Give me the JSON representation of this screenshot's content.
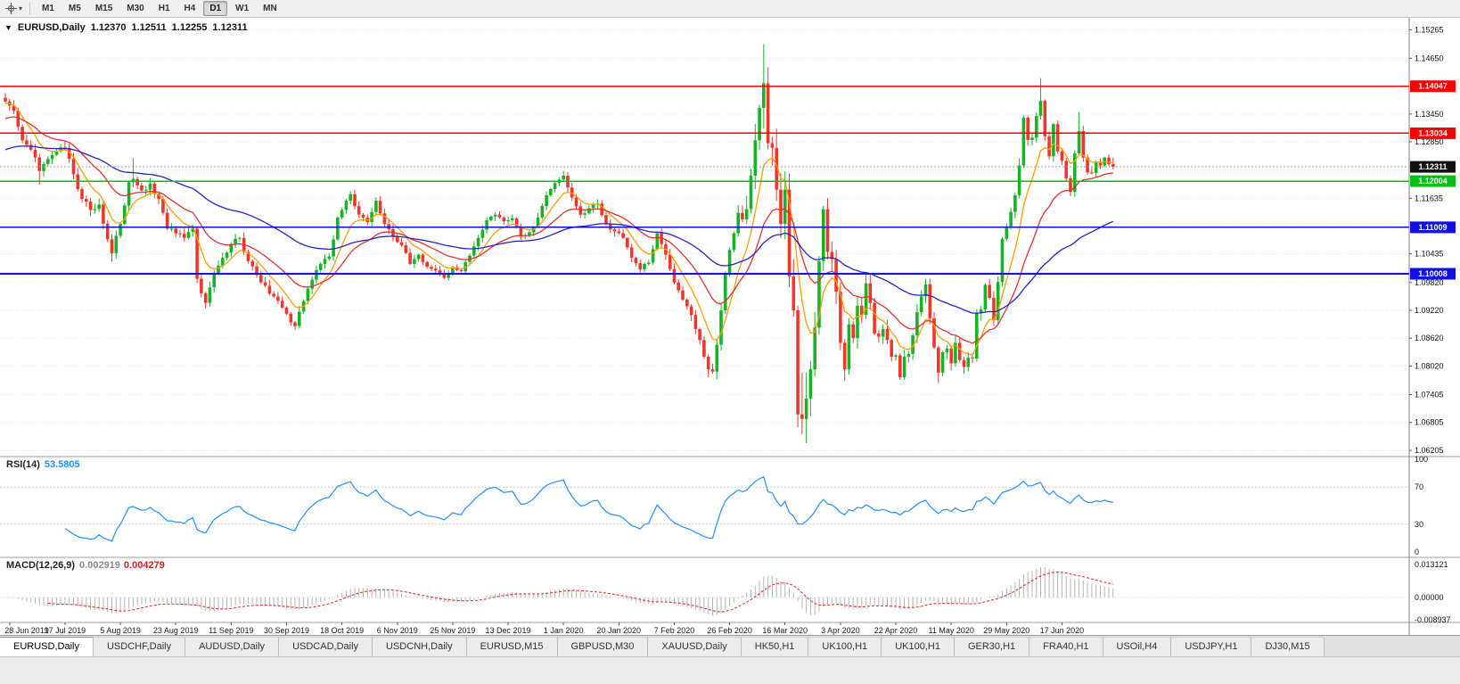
{
  "toolbar": {
    "timeframes": [
      {
        "label": "M1",
        "active": false
      },
      {
        "label": "M5",
        "active": false
      },
      {
        "label": "M15",
        "active": false
      },
      {
        "label": "M30",
        "active": false
      },
      {
        "label": "H1",
        "active": false
      },
      {
        "label": "H4",
        "active": false
      },
      {
        "label": "D1",
        "active": true
      },
      {
        "label": "W1",
        "active": false
      },
      {
        "label": "MN",
        "active": false
      }
    ]
  },
  "chart": {
    "symbol_period": "EURUSD,Daily",
    "ohlc": {
      "open": "1.12370",
      "high": "1.12511",
      "low": "1.12255",
      "close": "1.12311"
    },
    "price_axis": {
      "view_min": 1.0607,
      "view_max": 1.1552,
      "ticks": [
        {
          "value": 1.15265,
          "label": "1.15265"
        },
        {
          "value": 1.1465,
          "label": "1.14650"
        },
        {
          "value": 1.1345,
          "label": "1.13450"
        },
        {
          "value": 1.1285,
          "label": "1.12850"
        },
        {
          "value": 1.11635,
          "label": "1.11635"
        },
        {
          "value": 1.10435,
          "label": "1.10435"
        },
        {
          "value": 1.0982,
          "label": "1.09820"
        },
        {
          "value": 1.0922,
          "label": "1.09220"
        },
        {
          "value": 1.0862,
          "label": "1.08620"
        },
        {
          "value": 1.0802,
          "label": "1.08020"
        },
        {
          "value": 1.07405,
          "label": "1.07405"
        },
        {
          "value": 1.06805,
          "label": "1.06805"
        },
        {
          "value": 1.06205,
          "label": "1.06205"
        }
      ],
      "grid_values": [
        1.15265,
        1.1465,
        1.1405,
        1.1345,
        1.1285,
        1.1225,
        1.11635,
        1.11035,
        1.10435,
        1.0982,
        1.0922,
        1.0862,
        1.0802,
        1.07405,
        1.06805,
        1.06205
      ]
    },
    "levels": [
      {
        "value": 1.14047,
        "label": "1.14047",
        "color": "#fe0000"
      },
      {
        "value": 1.13034,
        "label": "1.13034",
        "color": "#fe0000"
      },
      {
        "value": 1.12004,
        "label": "1.12004",
        "color": "#00c213"
      },
      {
        "value": 1.11009,
        "label": "1.11009",
        "color": "#0f0fe8"
      },
      {
        "value": 1.10008,
        "label": "1.10008",
        "color": "#0f0fe8"
      }
    ],
    "current_price": {
      "value": 1.12311,
      "label": "1.12311"
    },
    "date_labels": [
      "28 Jun 2019",
      "17 Jul 2019",
      "5 Aug 2019",
      "23 Aug 2019",
      "11 Sep 2019",
      "30 Sep 2019",
      "18 Oct 2019",
      "6 Nov 2019",
      "25 Nov 2019",
      "13 Dec 2019",
      "1 Jan 2020",
      "20 Jan 2020",
      "7 Feb 2020",
      "26 Feb 2020",
      "16 Mar 2020",
      "3 Apr 2020",
      "22 Apr 2020",
      "11 May 2020",
      "29 May 2020",
      "17 Jun 2020"
    ]
  },
  "chart_data": {
    "type": "candlestick",
    "title": "EURUSD,Daily",
    "bars": 261,
    "first_label_bar": 1,
    "bars_per_label": 13,
    "colors": {
      "up": "#17b325",
      "down": "#f0352b"
    },
    "close_anchors": [
      [
        0,
        1.1372
      ],
      [
        2,
        1.1352
      ],
      [
        4,
        1.1288
      ],
      [
        6,
        1.1268
      ],
      [
        8,
        1.1222,
        null,
        1.1193
      ],
      [
        10,
        1.1248
      ],
      [
        12,
        1.1265
      ],
      [
        14,
        1.1272
      ],
      [
        16,
        1.1215
      ],
      [
        18,
        1.1162
      ],
      [
        20,
        1.1138
      ],
      [
        22,
        1.115
      ],
      [
        24,
        1.1075
      ],
      [
        25,
        1.1045,
        null,
        1.1027
      ],
      [
        27,
        1.1108
      ],
      [
        29,
        1.1198
      ],
      [
        30,
        1.1205,
        1.125,
        null
      ],
      [
        32,
        1.118
      ],
      [
        34,
        1.1195
      ],
      [
        36,
        1.1162
      ],
      [
        38,
        1.1098
      ],
      [
        40,
        1.1088
      ],
      [
        42,
        1.1078
      ],
      [
        44,
        1.1098
      ],
      [
        45,
        1.099
      ],
      [
        47,
        1.0938,
        null,
        1.0926
      ],
      [
        49,
        1.1002
      ],
      [
        51,
        1.1035
      ],
      [
        53,
        1.1065
      ],
      [
        55,
        1.1078
      ],
      [
        57,
        1.1028
      ],
      [
        59,
        1.0998
      ],
      [
        61,
        1.0975
      ],
      [
        63,
        1.0952
      ],
      [
        65,
        1.0928
      ],
      [
        67,
        1.0896
      ],
      [
        68,
        1.0888,
        null,
        1.0879
      ],
      [
        70,
        1.0942
      ],
      [
        72,
        1.0988
      ],
      [
        74,
        1.1022
      ],
      [
        76,
        1.1038
      ],
      [
        78,
        1.1122
      ],
      [
        80,
        1.1158
      ],
      [
        81,
        1.1172,
        1.1179,
        null
      ],
      [
        83,
        1.1128
      ],
      [
        85,
        1.1112
      ],
      [
        87,
        1.1158
      ],
      [
        89,
        1.1108
      ],
      [
        91,
        1.108
      ],
      [
        93,
        1.1062
      ],
      [
        95,
        1.1022
      ],
      [
        97,
        1.1042
      ],
      [
        99,
        1.1016
      ],
      [
        101,
        1.1008
      ],
      [
        103,
        1.0992,
        null,
        1.0989
      ],
      [
        105,
        1.1015
      ],
      [
        107,
        1.1006
      ],
      [
        109,
        1.104
      ],
      [
        111,
        1.1078
      ],
      [
        113,
        1.1116
      ],
      [
        115,
        1.1128
      ],
      [
        117,
        1.1114
      ],
      [
        119,
        1.112
      ],
      [
        121,
        1.1082
      ],
      [
        123,
        1.109
      ],
      [
        125,
        1.1122
      ],
      [
        127,
        1.117
      ],
      [
        129,
        1.1196
      ],
      [
        131,
        1.1212
      ],
      [
        133,
        1.1165
      ],
      [
        135,
        1.1128
      ],
      [
        137,
        1.1142
      ],
      [
        139,
        1.1152
      ],
      [
        141,
        1.1108
      ],
      [
        143,
        1.1092
      ],
      [
        145,
        1.1078
      ],
      [
        147,
        1.1035
      ],
      [
        149,
        1.101
      ],
      [
        151,
        1.1025
      ],
      [
        153,
        1.1088
      ],
      [
        155,
        1.1042
      ],
      [
        157,
        1.0982
      ],
      [
        159,
        1.0945
      ],
      [
        161,
        1.0912
      ],
      [
        163,
        1.0858
      ],
      [
        165,
        1.0795,
        null,
        1.0778
      ],
      [
        166,
        1.079
      ],
      [
        167,
        1.0848
      ],
      [
        168,
        1.0922
      ],
      [
        169,
        1.1
      ],
      [
        170,
        1.1052
      ],
      [
        171,
        1.1088
      ],
      [
        172,
        1.1132
      ],
      [
        173,
        1.1118
      ],
      [
        174,
        1.114
      ],
      [
        175,
        1.1212
      ],
      [
        176,
        1.1288
      ],
      [
        177,
        1.1358
      ],
      [
        178,
        1.1411,
        1.1495,
        1.1313
      ],
      [
        179,
        1.1282
      ],
      [
        180,
        1.1272
      ],
      [
        181,
        1.1182
      ],
      [
        182,
        1.1108
      ],
      [
        183,
        1.1182
      ],
      [
        184,
        1.0995
      ],
      [
        185,
        1.0922
      ],
      [
        186,
        1.0698,
        1.0932,
        1.067
      ],
      [
        187,
        1.0688,
        1.0788,
        1.0656
      ],
      [
        188,
        1.0732,
        1.0788,
        1.0636
      ],
      [
        189,
        1.0795
      ],
      [
        190,
        1.0885
      ],
      [
        191,
        1.1028
      ],
      [
        192,
        1.114,
        1.1147,
        null
      ],
      [
        193,
        1.1048
      ],
      [
        194,
        1.1032
      ],
      [
        195,
        1.0962
      ],
      [
        196,
        1.0852
      ],
      [
        197,
        1.0795
      ],
      [
        198,
        1.0892
      ],
      [
        199,
        1.0862
      ],
      [
        200,
        1.0932
      ],
      [
        201,
        1.0912
      ],
      [
        202,
        1.098
      ],
      [
        203,
        1.0938
      ],
      [
        204,
        1.0872
      ],
      [
        205,
        1.0865
      ],
      [
        206,
        1.0882
      ],
      [
        207,
        1.0858
      ],
      [
        208,
        1.0822
      ],
      [
        209,
        1.0825
      ],
      [
        210,
        1.0778
      ],
      [
        211,
        1.0822
      ],
      [
        212,
        1.0828
      ],
      [
        213,
        1.0868
      ],
      [
        214,
        1.0918
      ],
      [
        215,
        1.0952
      ],
      [
        216,
        1.0978
      ],
      [
        217,
        1.0905
      ],
      [
        218,
        1.0842
      ],
      [
        219,
        1.0788,
        null,
        1.0766
      ],
      [
        220,
        1.0832
      ],
      [
        221,
        1.084
      ],
      [
        222,
        1.0808
      ],
      [
        223,
        1.0852
      ],
      [
        224,
        1.0815
      ],
      [
        225,
        1.08
      ],
      [
        226,
        1.082
      ],
      [
        227,
        1.0818
      ],
      [
        228,
        1.0916
      ],
      [
        229,
        1.0924
      ],
      [
        230,
        1.0977
      ],
      [
        231,
        1.0949
      ],
      [
        232,
        1.0901
      ],
      [
        233,
        1.0983
      ],
      [
        234,
        1.1076
      ],
      [
        235,
        1.1101
      ],
      [
        236,
        1.1134
      ],
      [
        237,
        1.117
      ],
      [
        238,
        1.1234
      ],
      [
        239,
        1.1337
      ],
      [
        240,
        1.1289
      ],
      [
        241,
        1.1294
      ],
      [
        242,
        1.1341
      ],
      [
        243,
        1.1373,
        1.1422,
        1.1333
      ],
      [
        244,
        1.1297
      ],
      [
        245,
        1.1254
      ],
      [
        246,
        1.1323
      ],
      [
        247,
        1.1264
      ],
      [
        248,
        1.1244
      ],
      [
        249,
        1.1206
      ],
      [
        250,
        1.1177,
        null,
        1.1168
      ],
      [
        251,
        1.126
      ],
      [
        252,
        1.1308,
        1.1349,
        1.1256
      ],
      [
        253,
        1.1251
      ],
      [
        254,
        1.1219
      ],
      [
        255,
        1.1218
      ],
      [
        256,
        1.1242
      ],
      [
        257,
        1.1234
      ],
      [
        258,
        1.1251
      ],
      [
        259,
        1.1237
      ],
      [
        260,
        1.12311,
        1.12511,
        1.12255
      ]
    ],
    "volatility_anchors": [
      [
        0,
        0.0026
      ],
      [
        30,
        0.0024
      ],
      [
        60,
        0.0024
      ],
      [
        90,
        0.002
      ],
      [
        120,
        0.0018
      ],
      [
        150,
        0.002
      ],
      [
        163,
        0.0026
      ],
      [
        170,
        0.004
      ],
      [
        176,
        0.0065
      ],
      [
        184,
        0.0085
      ],
      [
        190,
        0.0065
      ],
      [
        196,
        0.005
      ],
      [
        205,
        0.0038
      ],
      [
        215,
        0.0032
      ],
      [
        225,
        0.0028
      ],
      [
        235,
        0.0028
      ],
      [
        243,
        0.003
      ],
      [
        250,
        0.0026
      ],
      [
        260,
        0.0016
      ]
    ],
    "moving_averages": [
      {
        "period": 8,
        "method": "ema",
        "color": "#ff9c00",
        "seed": 1.1368
      },
      {
        "period": 21,
        "method": "ema",
        "color": "#e03131",
        "seed": 1.1335
      },
      {
        "period": 60,
        "method": "ema",
        "color": "#2324c8",
        "seed": 1.1268
      }
    ]
  },
  "rsi": {
    "name": "RSI(14)",
    "value": "53.5805",
    "period": 14,
    "color": "#1e90ff",
    "levels": [
      70,
      30
    ],
    "ticks": [
      {
        "value": 100,
        "label": "100"
      },
      {
        "value": 70,
        "label": "70"
      },
      {
        "value": 30,
        "label": "30"
      },
      {
        "value": 0,
        "label": "0"
      }
    ]
  },
  "macd": {
    "name": "MACD(12,26,9)",
    "main_value": "0.002919",
    "signal_value": "0.004279",
    "fast": 12,
    "slow": 26,
    "signal": 9,
    "hist_color": "#b4b4b4",
    "signal_color": "#e02020",
    "ticks": [
      {
        "value": 0.013121,
        "label": "0.013121"
      },
      {
        "value": 0,
        "label": "0.00000"
      },
      {
        "value": -0.008937,
        "label": "-0.008937"
      }
    ]
  },
  "tabs": [
    {
      "label": "EURUSD,Daily",
      "active": true
    },
    {
      "label": "USDCHF,Daily",
      "active": false
    },
    {
      "label": "AUDUSD,Daily",
      "active": false
    },
    {
      "label": "USDCAD,Daily",
      "active": false
    },
    {
      "label": "USDCNH,Daily",
      "active": false
    },
    {
      "label": "EURUSD,M15",
      "active": false
    },
    {
      "label": "GBPUSD,M30",
      "active": false
    },
    {
      "label": "XAUUSD,Daily",
      "active": false
    },
    {
      "label": "HK50,H1",
      "active": false
    },
    {
      "label": "UK100,H1",
      "active": false
    },
    {
      "label": "UK100,H1",
      "active": false
    },
    {
      "label": "GER30,H1",
      "active": false
    },
    {
      "label": "FRA40,H1",
      "active": false
    },
    {
      "label": "USOil,H4",
      "active": false
    },
    {
      "label": "USDJPY,H1",
      "active": false
    },
    {
      "label": "DJ30,M15",
      "active": false
    }
  ]
}
